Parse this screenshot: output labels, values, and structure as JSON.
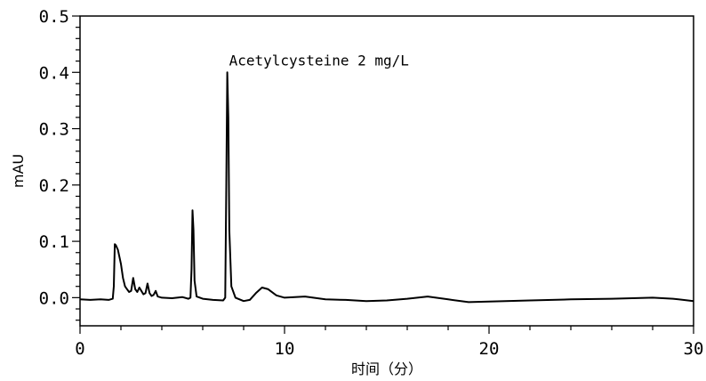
{
  "chart_data": {
    "type": "line",
    "title": "",
    "xlabel": "时间（分）",
    "ylabel": "mAU",
    "xlim": [
      0,
      30
    ],
    "ylim": [
      -0.05,
      0.5
    ],
    "x_ticks": [
      "0",
      "10",
      "20",
      "30"
    ],
    "y_ticks": [
      "0.0",
      "0.1",
      "0.2",
      "0.3",
      "0.4",
      "0.5"
    ],
    "grid": false,
    "annotation": {
      "text": "Acetylcysteine  2 mg/L",
      "x": 7.2,
      "y": 0.4
    },
    "series": [
      {
        "color": "#000000",
        "points": [
          [
            0.0,
            -0.003
          ],
          [
            0.5,
            -0.004
          ],
          [
            1.0,
            -0.003
          ],
          [
            1.4,
            -0.004
          ],
          [
            1.6,
            -0.002
          ],
          [
            1.65,
            0.02
          ],
          [
            1.7,
            0.095
          ],
          [
            1.75,
            0.093
          ],
          [
            1.85,
            0.085
          ],
          [
            2.0,
            0.06
          ],
          [
            2.1,
            0.035
          ],
          [
            2.2,
            0.02
          ],
          [
            2.3,
            0.015
          ],
          [
            2.4,
            0.01
          ],
          [
            2.5,
            0.012
          ],
          [
            2.6,
            0.035
          ],
          [
            2.7,
            0.015
          ],
          [
            2.8,
            0.01
          ],
          [
            2.9,
            0.018
          ],
          [
            3.0,
            0.012
          ],
          [
            3.1,
            0.006
          ],
          [
            3.2,
            0.008
          ],
          [
            3.3,
            0.025
          ],
          [
            3.4,
            0.008
          ],
          [
            3.5,
            0.003
          ],
          [
            3.6,
            0.005
          ],
          [
            3.7,
            0.012
          ],
          [
            3.8,
            0.002
          ],
          [
            4.0,
            0.0
          ],
          [
            4.5,
            -0.001
          ],
          [
            5.0,
            0.001
          ],
          [
            5.3,
            -0.002
          ],
          [
            5.4,
            0.0
          ],
          [
            5.45,
            0.05
          ],
          [
            5.5,
            0.155
          ],
          [
            5.55,
            0.12
          ],
          [
            5.6,
            0.03
          ],
          [
            5.7,
            0.002
          ],
          [
            6.0,
            -0.002
          ],
          [
            6.5,
            -0.004
          ],
          [
            7.0,
            -0.005
          ],
          [
            7.1,
            0.0
          ],
          [
            7.15,
            0.2
          ],
          [
            7.2,
            0.4
          ],
          [
            7.25,
            0.32
          ],
          [
            7.3,
            0.12
          ],
          [
            7.4,
            0.02
          ],
          [
            7.6,
            0.0
          ],
          [
            8.0,
            -0.006
          ],
          [
            8.3,
            -0.004
          ],
          [
            8.6,
            0.008
          ],
          [
            8.9,
            0.018
          ],
          [
            9.2,
            0.015
          ],
          [
            9.6,
            0.004
          ],
          [
            10.0,
            0.0
          ],
          [
            11.0,
            0.002
          ],
          [
            12.0,
            -0.003
          ],
          [
            13.0,
            -0.004
          ],
          [
            14.0,
            -0.006
          ],
          [
            15.0,
            -0.005
          ],
          [
            16.0,
            -0.002
          ],
          [
            17.0,
            0.002
          ],
          [
            18.0,
            -0.003
          ],
          [
            19.0,
            -0.008
          ],
          [
            20.0,
            -0.007
          ],
          [
            22.0,
            -0.005
          ],
          [
            24.0,
            -0.003
          ],
          [
            26.0,
            -0.002
          ],
          [
            28.0,
            0.0
          ],
          [
            29.0,
            -0.002
          ],
          [
            30.0,
            -0.006
          ]
        ]
      }
    ]
  }
}
